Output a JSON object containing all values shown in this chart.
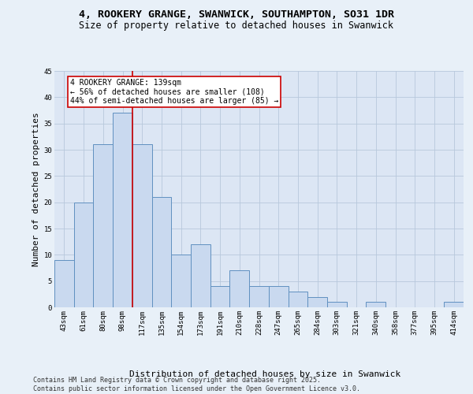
{
  "title_line1": "4, ROOKERY GRANGE, SWANWICK, SOUTHAMPTON, SO31 1DR",
  "title_line2": "Size of property relative to detached houses in Swanwick",
  "xlabel": "Distribution of detached houses by size in Swanwick",
  "ylabel": "Number of detached properties",
  "categories": [
    "43sqm",
    "61sqm",
    "80sqm",
    "98sqm",
    "117sqm",
    "135sqm",
    "154sqm",
    "173sqm",
    "191sqm",
    "210sqm",
    "228sqm",
    "247sqm",
    "265sqm",
    "284sqm",
    "303sqm",
    "321sqm",
    "340sqm",
    "358sqm",
    "377sqm",
    "395sqm",
    "414sqm"
  ],
  "values": [
    9,
    20,
    31,
    37,
    31,
    21,
    10,
    12,
    4,
    7,
    4,
    4,
    3,
    2,
    1,
    0,
    1,
    0,
    0,
    0,
    1
  ],
  "bar_color": "#c9d9ef",
  "bar_edge_color": "#6090c0",
  "grid_color": "#b8c8dc",
  "background_color": "#dce6f4",
  "fig_background_color": "#e8f0f8",
  "vline_color": "#cc0000",
  "vline_x_index": 4,
  "annotation_text": "4 ROOKERY GRANGE: 139sqm\n← 56% of detached houses are smaller (108)\n44% of semi-detached houses are larger (85) →",
  "annotation_box_facecolor": "#ffffff",
  "annotation_box_edgecolor": "#cc0000",
  "ylim": [
    0,
    45
  ],
  "yticks": [
    0,
    5,
    10,
    15,
    20,
    25,
    30,
    35,
    40,
    45
  ],
  "footer_text": "Contains HM Land Registry data © Crown copyright and database right 2025.\nContains public sector information licensed under the Open Government Licence v3.0.",
  "title_fontsize": 9.5,
  "subtitle_fontsize": 8.5,
  "axis_label_fontsize": 8,
  "tick_fontsize": 6.5,
  "annotation_fontsize": 7,
  "footer_fontsize": 6
}
